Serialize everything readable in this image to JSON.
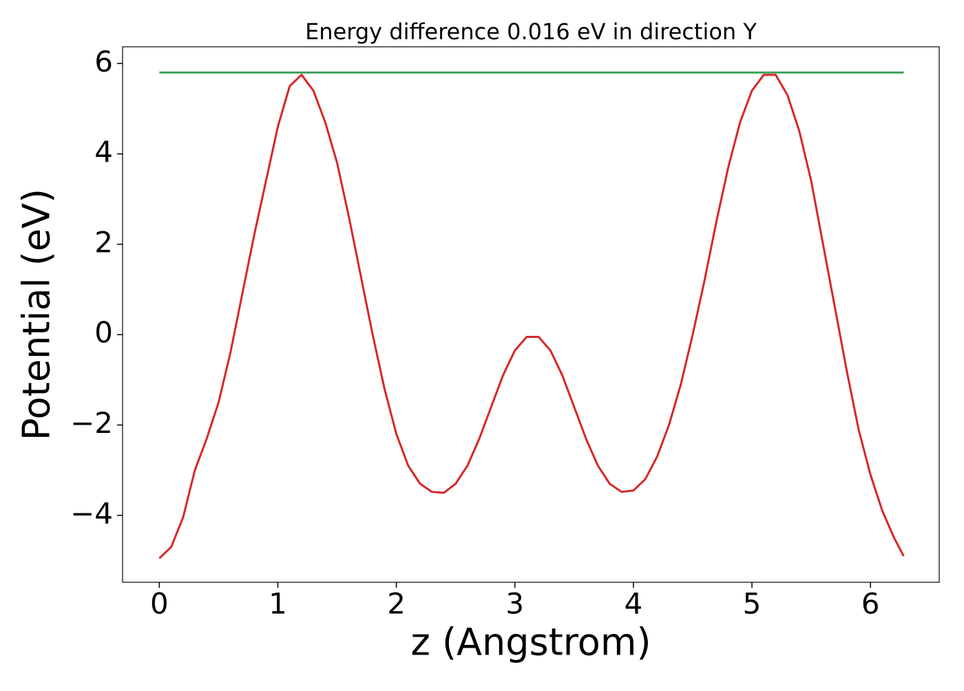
{
  "chart_data": {
    "type": "line",
    "title": "Energy difference 0.016 eV in direction Y",
    "x_label": "z (Angstrom)",
    "y_label": "Potential (eV)",
    "x": [
      0,
      0.1,
      0.2,
      0.3,
      0.4,
      0.5,
      0.6,
      0.7,
      0.8,
      0.9,
      1.0,
      1.1,
      1.2,
      1.3,
      1.4,
      1.5,
      1.6,
      1.7,
      1.8,
      1.9,
      2.0,
      2.1,
      2.2,
      2.3,
      2.4,
      2.5,
      2.6,
      2.7,
      2.8,
      2.9,
      3.0,
      3.1,
      3.2,
      3.3,
      3.4,
      3.5,
      3.6,
      3.7,
      3.8,
      3.9,
      4.0,
      4.1,
      4.2,
      4.3,
      4.4,
      4.5,
      4.6,
      4.7,
      4.8,
      4.9,
      5.0,
      5.1,
      5.2,
      5.3,
      5.4,
      5.5,
      5.6,
      5.7,
      5.8,
      5.9,
      6.0,
      6.1,
      6.2,
      6.28
    ],
    "series": [
      {
        "color": "#d62728",
        "values": [
          -4.95,
          -4.7,
          -4.05,
          -3.0,
          -2.3,
          -1.5,
          -0.4,
          0.9,
          2.2,
          3.4,
          4.6,
          5.5,
          5.75,
          5.4,
          4.7,
          3.8,
          2.6,
          1.3,
          0,
          -1.2,
          -2.2,
          -2.9,
          -3.3,
          -3.48,
          -3.5,
          -3.3,
          -2.9,
          -2.3,
          -1.6,
          -0.9,
          -0.35,
          -0.05,
          -0.05,
          -0.35,
          -0.9,
          -1.6,
          -2.3,
          -2.9,
          -3.3,
          -3.48,
          -3.45,
          -3.2,
          -2.7,
          -2.0,
          -1.1,
          0,
          1.2,
          2.5,
          3.7,
          4.7,
          5.4,
          5.75,
          5.75,
          5.3,
          4.5,
          3.4,
          2.0,
          0.6,
          -0.8,
          -2.1,
          -3.1,
          -3.9,
          -4.5,
          -4.9
        ]
      },
      {
        "color": "#3da35d",
        "values": [
          5.8,
          5.8,
          5.8,
          5.8,
          5.8,
          5.8,
          5.8,
          5.8,
          5.8,
          5.8,
          5.8,
          5.8,
          5.8,
          5.8,
          5.8,
          5.8,
          5.8,
          5.8,
          5.8,
          5.8,
          5.8,
          5.8,
          5.8,
          5.8,
          5.8,
          5.8,
          5.8,
          5.8,
          5.8,
          5.8,
          5.8,
          5.8,
          5.8,
          5.8,
          5.8,
          5.8,
          5.8,
          5.8,
          5.8,
          5.8,
          5.8,
          5.8,
          5.8,
          5.8,
          5.8,
          5.8,
          5.8,
          5.8,
          5.8,
          5.8,
          5.8,
          5.8,
          5.8,
          5.8,
          5.8,
          5.8,
          5.8,
          5.8,
          5.8,
          5.8,
          5.8,
          5.8,
          5.8,
          5.8
        ]
      }
    ],
    "xlim": [
      -0.31,
      6.58
    ],
    "ylim": [
      -5.48,
      6.37
    ],
    "xticks": [
      0,
      1,
      2,
      3,
      4,
      5,
      6
    ],
    "yticks": [
      {
        "value": -4,
        "label": "−4"
      },
      {
        "value": -2,
        "label": "−2"
      },
      0,
      2,
      4,
      6
    ],
    "grid": false
  }
}
